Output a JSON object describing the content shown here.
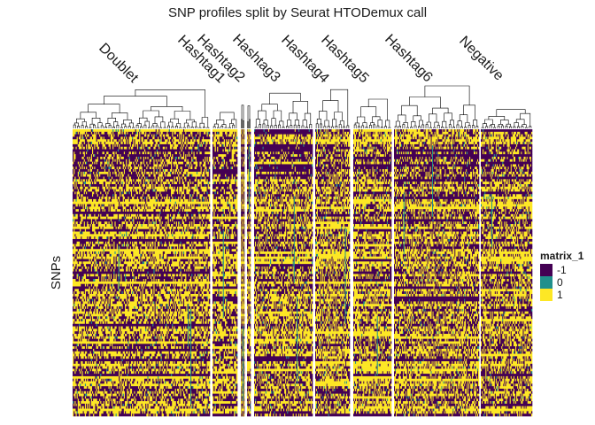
{
  "chart_data": {
    "type": "heatmap",
    "title": "SNP profiles split by Seurat HTODemux call",
    "ylabel": "SNPs",
    "xlabel": "",
    "groups": [
      {
        "name": "Doublet",
        "cells": 134
      },
      {
        "name": "Hashtag1",
        "cells": 22
      },
      {
        "name": "Hashtag2",
        "cells": 26
      },
      {
        "name": "Hashtag3",
        "cells": 7
      },
      {
        "name": "Hashtag4",
        "cells": 62
      },
      {
        "name": "Hashtag5",
        "cells": 40
      },
      {
        "name": "Hashtag6",
        "cells": 42
      },
      {
        "name": "Negative",
        "cells": 97
      },
      {
        "name": "",
        "cells": 55
      }
    ],
    "row_count": 115,
    "legend": {
      "title": "matrix_1",
      "entries": [
        {
          "label": "-1",
          "value": -1,
          "color": "#440154"
        },
        {
          "label": "0",
          "value": 0,
          "color": "#21908C"
        },
        {
          "label": "1",
          "value": 1,
          "color": "#FDE725"
        }
      ],
      "placement": "right"
    },
    "dendrogram": true
  }
}
